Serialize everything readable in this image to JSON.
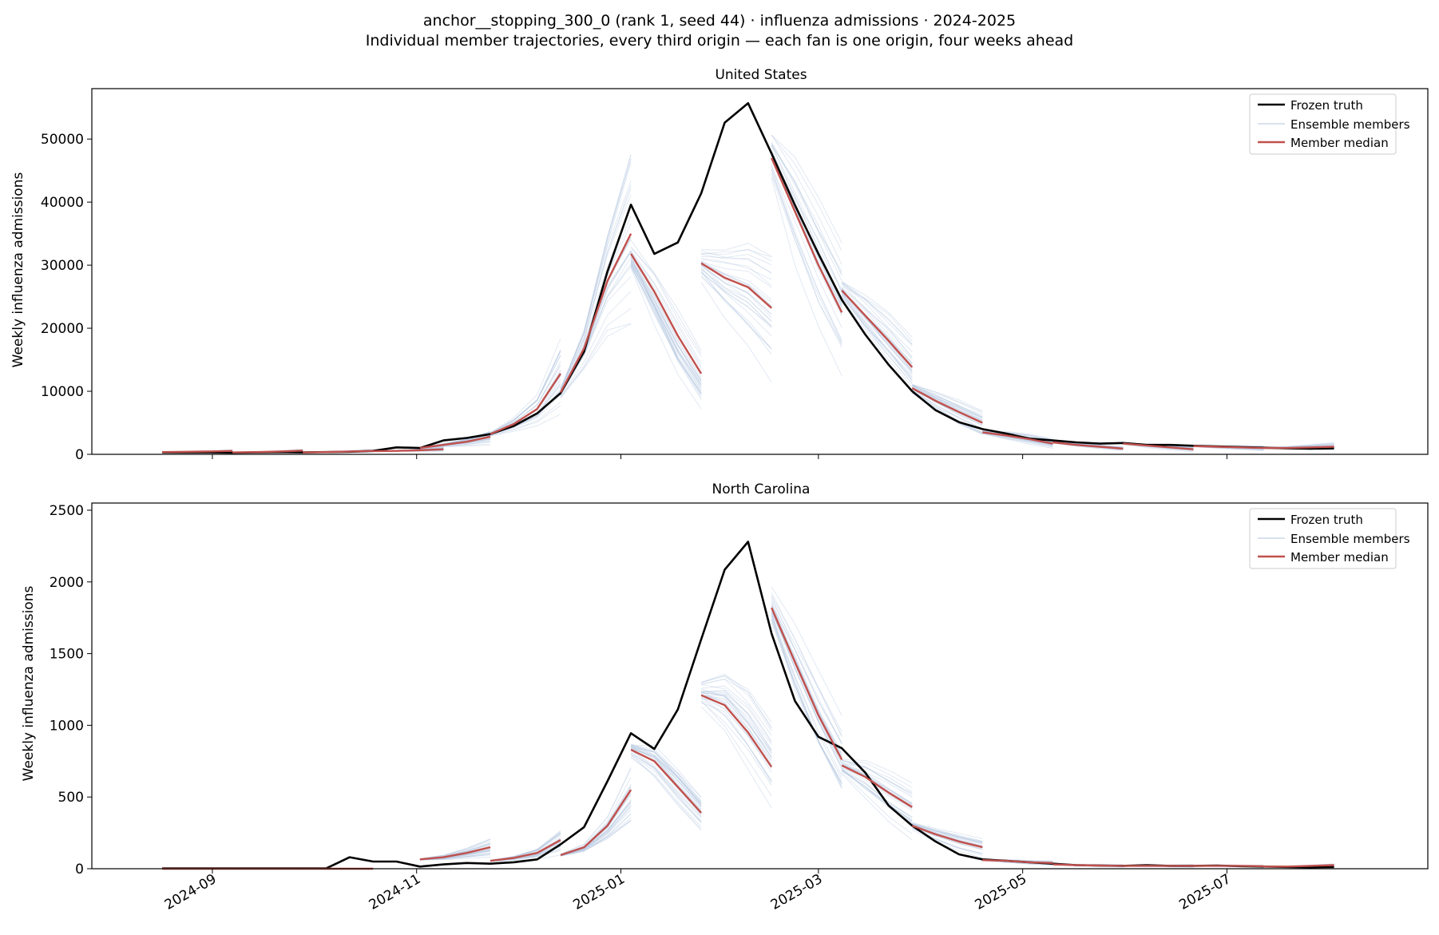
{
  "figure": {
    "title": "anchor__stopping_300_0 (rank 1, seed 44) · influenza admissions · 2024-2025",
    "subtitle": "Individual member trajectories, every third origin — each fan is one origin, four weeks ahead"
  },
  "colors": {
    "truth": "#000000",
    "members": "#b0c4de",
    "median": "#c0504d"
  },
  "chart_data": [
    {
      "type": "line",
      "title": "United States",
      "xlabel": "",
      "ylabel": "Weekly influenza admissions",
      "x_ticks": [
        "2024-09",
        "2024-11",
        "2025-01",
        "2025-03",
        "2025-05",
        "2025-07"
      ],
      "y_ticks": [
        0,
        10000,
        20000,
        30000,
        40000,
        50000
      ],
      "xlim": [
        "2024-07-27",
        "2025-08-30"
      ],
      "ylim": [
        0,
        58000
      ],
      "legend": {
        "position": "top-right",
        "entries": [
          "Frozen truth",
          "Ensemble members",
          "Member median"
        ]
      },
      "truth": {
        "name": "Frozen truth",
        "x": [
          "2024-08-17",
          "2024-08-24",
          "2024-08-31",
          "2024-09-07",
          "2024-09-14",
          "2024-09-21",
          "2024-09-28",
          "2024-10-05",
          "2024-10-12",
          "2024-10-19",
          "2024-10-26",
          "2024-11-02",
          "2024-11-09",
          "2024-11-16",
          "2024-11-23",
          "2024-11-30",
          "2024-12-07",
          "2024-12-14",
          "2024-12-21",
          "2024-12-28",
          "2025-01-04",
          "2025-01-11",
          "2025-01-18",
          "2025-01-25",
          "2025-02-01",
          "2025-02-08",
          "2025-02-15",
          "2025-02-22",
          "2025-03-01",
          "2025-03-08",
          "2025-03-15",
          "2025-03-22",
          "2025-03-29",
          "2025-04-05",
          "2025-04-12",
          "2025-04-19",
          "2025-04-26",
          "2025-05-03",
          "2025-05-10",
          "2025-05-17",
          "2025-05-24",
          "2025-05-31",
          "2025-06-07",
          "2025-06-14",
          "2025-06-21",
          "2025-06-28",
          "2025-07-05",
          "2025-07-12",
          "2025-07-19",
          "2025-07-26",
          "2025-08-02"
        ],
        "y": [
          300,
          300,
          300,
          250,
          300,
          350,
          300,
          350,
          400,
          550,
          1100,
          1000,
          2200,
          2600,
          3200,
          4500,
          6500,
          9700,
          16300,
          29000,
          39600,
          31800,
          33600,
          41400,
          52600,
          55700,
          47700,
          39500,
          31800,
          24500,
          19000,
          14200,
          10000,
          7000,
          5100,
          4000,
          3300,
          2500,
          2200,
          1900,
          1700,
          1800,
          1500,
          1500,
          1350,
          1250,
          1150,
          1050,
          950,
          900,
          950
        ]
      },
      "median_fans": [
        {
          "x": [
            "2024-08-17",
            "2024-08-24",
            "2024-08-31",
            "2024-09-07"
          ],
          "y": [
            350,
            400,
            450,
            550
          ]
        },
        {
          "x": [
            "2024-09-07",
            "2024-09-14",
            "2024-09-21",
            "2024-09-28"
          ],
          "y": [
            300,
            350,
            450,
            600
          ]
        },
        {
          "x": [
            "2024-09-28",
            "2024-10-05",
            "2024-10-12",
            "2024-10-19"
          ],
          "y": [
            300,
            350,
            450,
            550
          ]
        },
        {
          "x": [
            "2024-10-19",
            "2024-10-26",
            "2024-11-02",
            "2024-11-09"
          ],
          "y": [
            500,
            550,
            650,
            800
          ]
        },
        {
          "x": [
            "2024-11-02",
            "2024-11-09",
            "2024-11-16",
            "2024-11-23"
          ],
          "y": [
            1000,
            1500,
            2000,
            2800
          ]
        },
        {
          "x": [
            "2024-11-23",
            "2024-11-30",
            "2024-12-07",
            "2024-12-14"
          ],
          "y": [
            3200,
            4800,
            7200,
            12800
          ]
        },
        {
          "x": [
            "2024-12-14",
            "2024-12-21",
            "2024-12-28",
            "2025-01-04"
          ],
          "y": [
            9800,
            16800,
            27500,
            35000
          ]
        },
        {
          "x": [
            "2025-01-04",
            "2025-01-11",
            "2025-01-18",
            "2025-01-25"
          ],
          "y": [
            31800,
            25800,
            18800,
            12800
          ]
        },
        {
          "x": [
            "2025-01-25",
            "2025-02-01",
            "2025-02-08",
            "2025-02-15"
          ],
          "y": [
            30300,
            28000,
            26500,
            23200
          ]
        },
        {
          "x": [
            "2025-02-15",
            "2025-02-22",
            "2025-03-01",
            "2025-03-08"
          ],
          "y": [
            47000,
            38500,
            30000,
            22500
          ]
        },
        {
          "x": [
            "2025-03-08",
            "2025-03-15",
            "2025-03-22",
            "2025-03-29"
          ],
          "y": [
            26000,
            22000,
            18000,
            13800
          ]
        },
        {
          "x": [
            "2025-03-29",
            "2025-04-05",
            "2025-04-12",
            "2025-04-19"
          ],
          "y": [
            10500,
            8500,
            6700,
            5000
          ]
        },
        {
          "x": [
            "2025-04-19",
            "2025-04-26",
            "2025-05-03",
            "2025-05-10"
          ],
          "y": [
            3500,
            3000,
            2400,
            1700
          ]
        },
        {
          "x": [
            "2025-05-10",
            "2025-05-17",
            "2025-05-24",
            "2025-05-31"
          ],
          "y": [
            1900,
            1500,
            1200,
            900
          ]
        },
        {
          "x": [
            "2025-05-31",
            "2025-06-07",
            "2025-06-14",
            "2025-06-21"
          ],
          "y": [
            1700,
            1400,
            1100,
            800
          ]
        },
        {
          "x": [
            "2025-06-21",
            "2025-06-28",
            "2025-07-05",
            "2025-07-12"
          ],
          "y": [
            1300,
            1200,
            1100,
            1000
          ]
        },
        {
          "x": [
            "2025-07-12",
            "2025-07-19",
            "2025-07-26",
            "2025-08-02"
          ],
          "y": [
            1000,
            1000,
            1100,
            1200
          ]
        }
      ]
    },
    {
      "type": "line",
      "title": "North Carolina",
      "xlabel": "",
      "ylabel": "Weekly influenza admissions",
      "x_ticks": [
        "2024-09",
        "2024-11",
        "2025-01",
        "2025-03",
        "2025-05",
        "2025-07"
      ],
      "y_ticks": [
        0,
        500,
        1000,
        1500,
        2000,
        2500
      ],
      "xlim": [
        "2024-07-27",
        "2025-08-30"
      ],
      "ylim": [
        0,
        2550
      ],
      "legend": {
        "position": "top-right",
        "entries": [
          "Frozen truth",
          "Ensemble members",
          "Member median"
        ]
      },
      "truth": {
        "name": "Frozen truth",
        "x": [
          "2024-08-17",
          "2024-08-24",
          "2024-08-31",
          "2024-09-07",
          "2024-09-14",
          "2024-09-21",
          "2024-09-28",
          "2024-10-05",
          "2024-10-12",
          "2024-10-19",
          "2024-10-26",
          "2024-11-02",
          "2024-11-09",
          "2024-11-16",
          "2024-11-23",
          "2024-11-30",
          "2024-12-07",
          "2024-12-14",
          "2024-12-21",
          "2024-12-28",
          "2025-01-04",
          "2025-01-11",
          "2025-01-18",
          "2025-01-25",
          "2025-02-01",
          "2025-02-08",
          "2025-02-15",
          "2025-02-22",
          "2025-03-01",
          "2025-03-08",
          "2025-03-15",
          "2025-03-22",
          "2025-03-29",
          "2025-04-05",
          "2025-04-12",
          "2025-04-19",
          "2025-04-26",
          "2025-05-03",
          "2025-05-10",
          "2025-05-17",
          "2025-05-24",
          "2025-05-31",
          "2025-06-07",
          "2025-06-14",
          "2025-06-21",
          "2025-06-28",
          "2025-07-05",
          "2025-07-12",
          "2025-07-19",
          "2025-07-26",
          "2025-08-02"
        ],
        "y": [
          2,
          2,
          2,
          2,
          2,
          2,
          2,
          2,
          80,
          50,
          50,
          15,
          30,
          40,
          35,
          45,
          65,
          170,
          290,
          610,
          945,
          835,
          1110,
          1600,
          2085,
          2280,
          1640,
          1170,
          920,
          840,
          670,
          440,
          300,
          190,
          100,
          65,
          55,
          45,
          35,
          25,
          22,
          20,
          25,
          20,
          20,
          22,
          18,
          15,
          12,
          10,
          12
        ]
      },
      "median_fans": [
        {
          "x": [
            "2024-08-17",
            "2024-08-24",
            "2024-08-31",
            "2024-09-07"
          ],
          "y": [
            0,
            0,
            0,
            0
          ]
        },
        {
          "x": [
            "2024-09-07",
            "2024-09-14",
            "2024-09-21",
            "2024-09-28"
          ],
          "y": [
            0,
            0,
            0,
            0
          ]
        },
        {
          "x": [
            "2024-09-28",
            "2024-10-05",
            "2024-10-12",
            "2024-10-19"
          ],
          "y": [
            0,
            0,
            0,
            0
          ]
        },
        {
          "x": [
            "2024-11-02",
            "2024-11-09",
            "2024-11-16",
            "2024-11-23"
          ],
          "y": [
            65,
            80,
            110,
            150
          ]
        },
        {
          "x": [
            "2024-11-23",
            "2024-11-30",
            "2024-12-07",
            "2024-12-14"
          ],
          "y": [
            55,
            75,
            110,
            200
          ]
        },
        {
          "x": [
            "2024-12-14",
            "2024-12-21",
            "2024-12-28",
            "2025-01-04"
          ],
          "y": [
            95,
            150,
            300,
            550
          ]
        },
        {
          "x": [
            "2025-01-04",
            "2025-01-11",
            "2025-01-18",
            "2025-01-25"
          ],
          "y": [
            830,
            750,
            570,
            390
          ]
        },
        {
          "x": [
            "2025-01-25",
            "2025-02-01",
            "2025-02-08",
            "2025-02-15"
          ],
          "y": [
            1210,
            1140,
            950,
            710
          ]
        },
        {
          "x": [
            "2025-02-15",
            "2025-02-22",
            "2025-03-01",
            "2025-03-08"
          ],
          "y": [
            1820,
            1440,
            1070,
            760
          ]
        },
        {
          "x": [
            "2025-03-08",
            "2025-03-15",
            "2025-03-22",
            "2025-03-29"
          ],
          "y": [
            720,
            640,
            530,
            430
          ]
        },
        {
          "x": [
            "2025-03-29",
            "2025-04-05",
            "2025-04-12",
            "2025-04-19"
          ],
          "y": [
            300,
            240,
            190,
            150
          ]
        },
        {
          "x": [
            "2025-04-19",
            "2025-04-26",
            "2025-05-03",
            "2025-05-10"
          ],
          "y": [
            60,
            55,
            45,
            40
          ]
        },
        {
          "x": [
            "2025-05-10",
            "2025-05-17",
            "2025-05-24",
            "2025-05-31"
          ],
          "y": [
            30,
            25,
            22,
            20
          ]
        },
        {
          "x": [
            "2025-05-31",
            "2025-06-07",
            "2025-06-14",
            "2025-06-21"
          ],
          "y": [
            20,
            20,
            20,
            20
          ]
        },
        {
          "x": [
            "2025-06-21",
            "2025-06-28",
            "2025-07-05",
            "2025-07-12"
          ],
          "y": [
            20,
            20,
            20,
            18
          ]
        },
        {
          "x": [
            "2025-07-12",
            "2025-07-19",
            "2025-07-26",
            "2025-08-02"
          ],
          "y": [
            15,
            15,
            20,
            25
          ]
        }
      ]
    }
  ]
}
